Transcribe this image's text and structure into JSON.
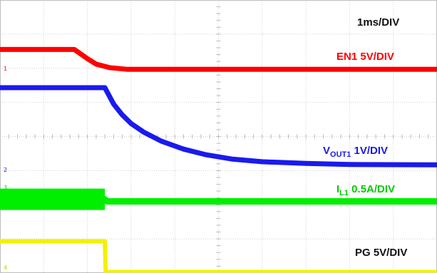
{
  "chart_data": {
    "type": "line",
    "title": "",
    "timebase_label": "1ms/DIV",
    "grid": true,
    "x_unit": "ms",
    "x_divisions": 10,
    "y_divisions": 8,
    "series": [
      {
        "name": "EN1",
        "label_main": "EN1 5V/DIV",
        "color": "#ff0000",
        "channel_marker": "1",
        "points_div": [
          [
            0,
            2.55
          ],
          [
            1.7,
            2.55
          ],
          [
            2.0,
            2.28
          ],
          [
            2.2,
            2.12
          ],
          [
            2.5,
            2.02
          ],
          [
            2.9,
            1.97
          ],
          [
            10,
            1.97
          ]
        ]
      },
      {
        "name": "VOUT1",
        "label_main": "V",
        "label_sub": "OUT1",
        "label_rest": " 1V/DIV",
        "color": "#1a1aee",
        "channel_marker": "2",
        "points_div": [
          [
            0,
            1.43
          ],
          [
            2.4,
            1.43
          ],
          [
            2.6,
            0.95
          ],
          [
            2.8,
            0.63
          ],
          [
            3.0,
            0.38
          ],
          [
            3.3,
            0.12
          ],
          [
            3.7,
            -0.14
          ],
          [
            4.2,
            -0.37
          ],
          [
            4.7,
            -0.53
          ],
          [
            5.3,
            -0.66
          ],
          [
            6.0,
            -0.74
          ],
          [
            7.0,
            -0.79
          ],
          [
            8.0,
            -0.82
          ],
          [
            10,
            -0.83
          ]
        ]
      },
      {
        "name": "IL1",
        "label_main": "I",
        "label_sub": "L1",
        "label_rest": " 0.5A/DIV",
        "color": "#00ee00",
        "channel_marker": "3",
        "points_div": [
          [
            0,
            -1.84
          ],
          [
            2.4,
            -1.84
          ],
          [
            2.45,
            -1.9
          ],
          [
            10,
            -1.9
          ]
        ]
      },
      {
        "name": "PG",
        "label_main": "PG 5V/DIV",
        "color": "#f2f200",
        "channel_marker": "4",
        "points_div": [
          [
            0,
            -3.07
          ],
          [
            2.4,
            -3.07
          ],
          [
            2.42,
            -3.97
          ],
          [
            10,
            -3.97
          ]
        ]
      }
    ]
  }
}
